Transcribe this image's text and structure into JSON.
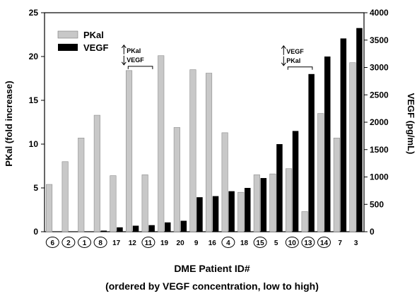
{
  "chart_data": {
    "type": "bar",
    "categories": [
      "6",
      "2",
      "1",
      "8",
      "17",
      "12",
      "11",
      "19",
      "20",
      "9",
      "16",
      "4",
      "18",
      "15",
      "5",
      "10",
      "13",
      "14",
      "7",
      "3"
    ],
    "circled_categories": [
      "6",
      "2",
      "1",
      "8",
      "11",
      "4",
      "15",
      "10",
      "13",
      "14"
    ],
    "series": [
      {
        "name": "PKal",
        "axis": "left",
        "color": "#c8c8c8",
        "values": [
          5.4,
          8.0,
          10.7,
          13.3,
          6.4,
          18.4,
          6.5,
          20.1,
          11.9,
          18.5,
          18.1,
          11.3,
          4.5,
          6.5,
          6.6,
          7.2,
          2.3,
          13.5,
          10.7,
          19.3
        ]
      },
      {
        "name": "VEGF",
        "axis": "right",
        "color": "#000000",
        "values": [
          0,
          0,
          0,
          20,
          80,
          110,
          120,
          170,
          200,
          630,
          650,
          740,
          800,
          980,
          1600,
          1840,
          2880,
          3200,
          3530,
          3720
        ]
      }
    ],
    "y_left": {
      "label": "PKal (fold increase)",
      "range": [
        0,
        25
      ],
      "ticks": [
        0,
        5,
        10,
        15,
        20,
        25
      ]
    },
    "y_right": {
      "label": "VEGF (pg/mL)",
      "range": [
        0,
        4000
      ],
      "ticks": [
        0,
        500,
        1000,
        1500,
        2000,
        2500,
        3000,
        3500,
        4000
      ]
    },
    "xlabel": "DME Patient ID#",
    "xlabel_sub": "(ordered by VEGF concentration, low to high)",
    "legend": {
      "placement": "top-left",
      "entries": [
        "PKal",
        "VEGF"
      ]
    },
    "annotations": [
      {
        "id": "ann1",
        "over_categories": [
          "12",
          "11"
        ],
        "arrow_up": "PKal",
        "arrow_down": "VEGF"
      },
      {
        "id": "ann2",
        "over_categories": [
          "10",
          "13"
        ],
        "arrow_up": "VEGF",
        "arrow_down": "PKal"
      }
    ],
    "grid": false
  }
}
